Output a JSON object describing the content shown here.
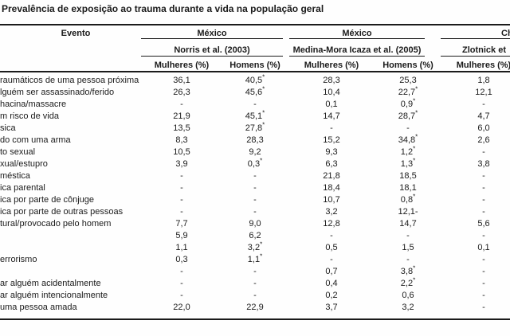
{
  "title": "Prevalência de exposição ao trauma durante a vida na população geral",
  "colors": {
    "text": "#1b1b1b",
    "rule": "#1b1b1b",
    "background": "#fefefe"
  },
  "table": {
    "event_header": "Evento",
    "groups": [
      {
        "country": "México",
        "study": "Norris et al. (2003)",
        "columns": [
          "Mulheres (%)",
          "Homens (%)"
        ]
      },
      {
        "country": "México",
        "study": "Medina-Mora Icaza et al. (2005)",
        "columns": [
          "Mulheres (%)",
          "Homens (%)"
        ]
      },
      {
        "country": "Chi",
        "study": "Zlotnick et",
        "columns": [
          "Mulheres (%)"
        ]
      }
    ],
    "rows": [
      {
        "event": "raumáticos de uma pessoa próxima",
        "values": [
          "36,1",
          "40,5*",
          "28,3",
          "25,3",
          "1,8"
        ]
      },
      {
        "event": "lguém ser assassinado/ferido",
        "values": [
          "26,3",
          "45,6*",
          "10,4",
          "22,7*",
          "12,1"
        ]
      },
      {
        "event": "hacina/massacre",
        "values": [
          "-",
          "-",
          "0,1",
          "0,9*",
          "-"
        ]
      },
      {
        "event": "m risco de vida",
        "values": [
          "21,9",
          "45,1*",
          "14,7",
          "28,7*",
          "4,7"
        ]
      },
      {
        "event": "sica",
        "values": [
          "13,5",
          "27,8*",
          "-",
          "-",
          "6,0"
        ]
      },
      {
        "event": "do com uma arma",
        "values": [
          "8,3",
          "28,3",
          "15,2",
          "34,8*",
          "2,6"
        ]
      },
      {
        "event": "to sexual",
        "values": [
          "10,5",
          "9,2",
          "9,3",
          "1,2*",
          "-"
        ]
      },
      {
        "event": "xual/estupro",
        "values": [
          "3,9",
          "0,3*",
          "6,3",
          "1,3*",
          "3,8"
        ]
      },
      {
        "event": "méstica",
        "values": [
          "-",
          "-",
          "21,8",
          "18,5",
          "-"
        ]
      },
      {
        "event": "ica parental",
        "values": [
          "-",
          "-",
          "18,4",
          "18,1",
          "-"
        ]
      },
      {
        "event": "ica por parte de cônjuge",
        "values": [
          "-",
          "-",
          "10,7",
          "0,8*",
          "-"
        ]
      },
      {
        "event": "ica por parte de outras pessoas",
        "values": [
          "-",
          "-",
          "3,2",
          "12,1-",
          "-"
        ]
      },
      {
        "event": "tural/provocado pelo homem",
        "values": [
          "7,7",
          "9,0",
          "12,8",
          "14,7",
          "5,6"
        ]
      },
      {
        "event": "",
        "values": [
          "5,9",
          "6,2",
          "-",
          "-",
          "-"
        ]
      },
      {
        "event": "",
        "values": [
          "1,1",
          "3,2*",
          "0,5",
          "1,5",
          "0,1"
        ]
      },
      {
        "event": "errorismo",
        "values": [
          "0,3",
          "1,1*",
          "-",
          "-",
          "-"
        ]
      },
      {
        "event": "",
        "values": [
          "-",
          "-",
          "0,7",
          "3,8*",
          "-"
        ]
      },
      {
        "event": "ar alguém acidentalmente",
        "values": [
          "-",
          "-",
          "0,4",
          "2,2*",
          "-"
        ]
      },
      {
        "event": "ar alguém intencionalmente",
        "values": [
          "-",
          "-",
          "0,2",
          "0,6",
          "-"
        ]
      },
      {
        "event": "uma pessoa amada",
        "values": [
          "22,0",
          "22,9",
          "3,7",
          "3,2",
          "-"
        ]
      }
    ]
  }
}
